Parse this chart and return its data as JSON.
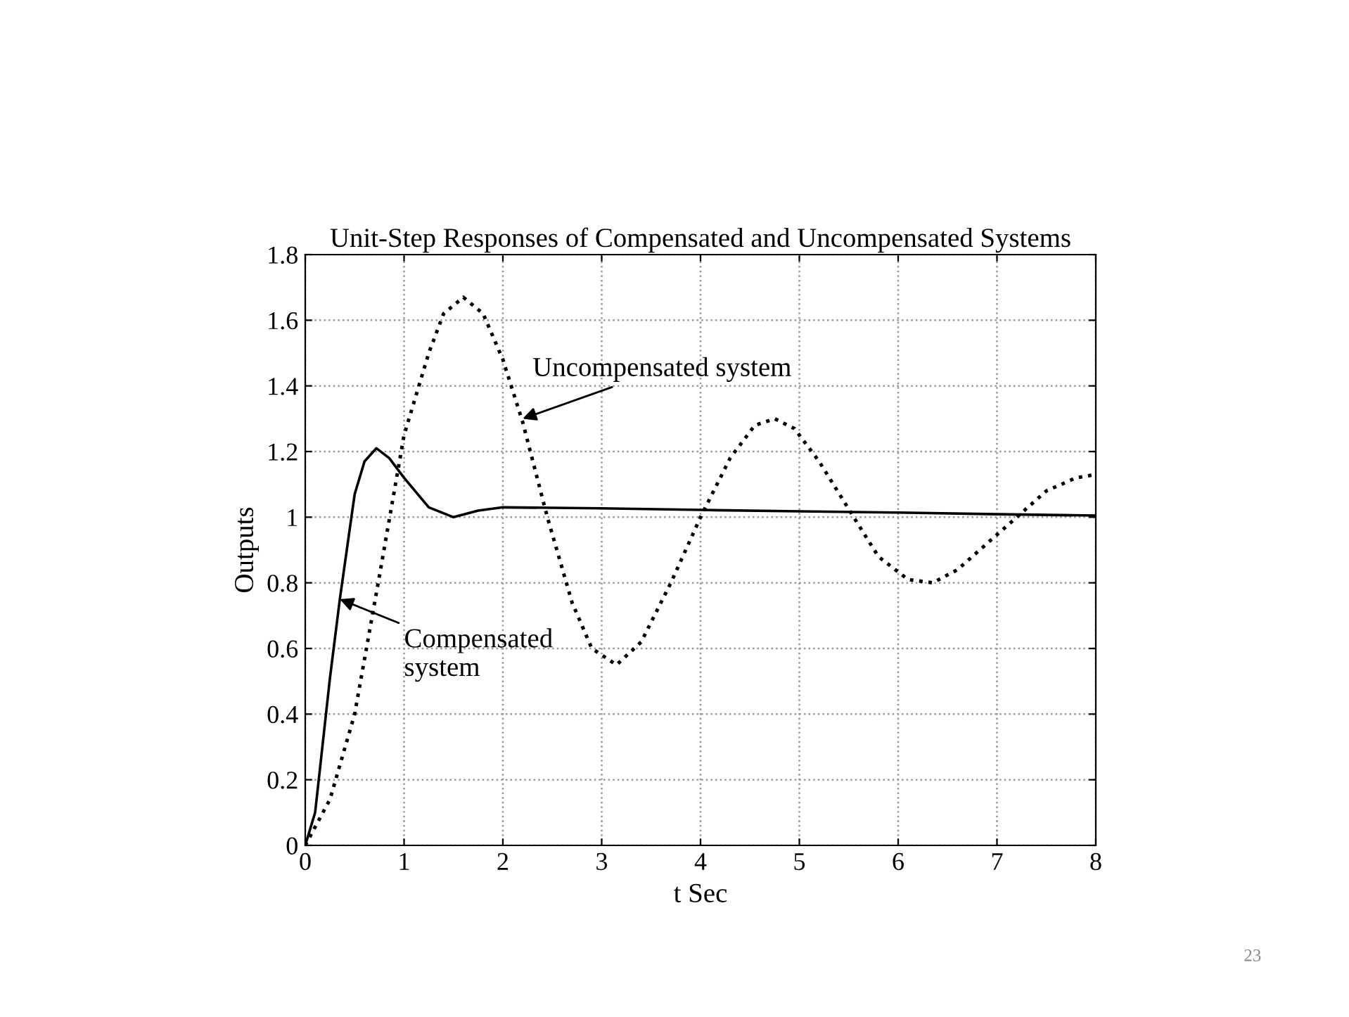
{
  "chart_data": {
    "type": "line",
    "title": "Unit-Step Responses of Compensated and Uncompensated Systems",
    "xlabel": "t Sec",
    "ylabel": "Outputs",
    "xlim": [
      0,
      8
    ],
    "ylim": [
      0,
      1.8
    ],
    "xticks": [
      0,
      1,
      2,
      3,
      4,
      5,
      6,
      7,
      8
    ],
    "yticks": [
      0,
      0.2,
      0.4,
      0.6,
      0.8,
      1,
      1.2,
      1.4,
      1.6,
      1.8
    ],
    "grid": true,
    "marker": "none",
    "series": [
      {
        "color": "#000000",
        "line_style": "solid",
        "x": [
          0,
          0.1,
          0.25,
          0.35,
          0.5,
          0.6,
          0.72,
          0.85,
          1.0,
          1.25,
          1.5,
          1.75,
          2.0,
          3,
          4,
          5,
          6,
          7,
          8
        ],
        "values": [
          0,
          0.1,
          0.51,
          0.75,
          1.07,
          1.17,
          1.21,
          1.18,
          1.12,
          1.03,
          1.0,
          1.02,
          1.03,
          1.027,
          1.022,
          1.018,
          1.014,
          1.009,
          1.005
        ]
      },
      {
        "color": "#000000",
        "line_style": "dotted",
        "x": [
          0,
          0.25,
          0.5,
          0.75,
          1.0,
          1.25,
          1.4,
          1.6,
          1.8,
          2.0,
          2.2,
          2.45,
          2.7,
          2.9,
          3.15,
          3.4,
          3.7,
          4.0,
          4.3,
          4.55,
          4.75,
          4.95,
          5.2,
          5.55,
          5.8,
          6.1,
          6.35,
          6.6,
          6.9,
          7.2,
          7.5,
          7.8,
          8.0
        ],
        "values": [
          0,
          0.14,
          0.4,
          0.82,
          1.25,
          1.5,
          1.62,
          1.67,
          1.62,
          1.48,
          1.29,
          1.0,
          0.74,
          0.6,
          0.55,
          0.62,
          0.8,
          1.0,
          1.18,
          1.28,
          1.3,
          1.27,
          1.17,
          1.0,
          0.88,
          0.81,
          0.8,
          0.84,
          0.92,
          1.0,
          1.08,
          1.12,
          1.13
        ]
      }
    ],
    "annotations": [
      {
        "text": "Uncompensated system",
        "x": 2.2,
        "y": 1.3
      },
      {
        "text": "Compensated\nsystem",
        "x": 0.35,
        "y": 0.75
      },
      "23"
    ]
  }
}
